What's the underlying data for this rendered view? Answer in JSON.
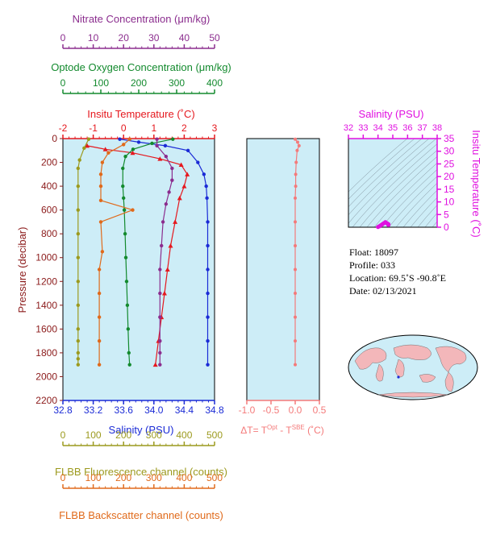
{
  "colors": {
    "nitrate": "#8B2D8E",
    "oxygen": "#138A2E",
    "temperature": "#E5181E",
    "salinity": "#1B2BD6",
    "fluorescence": "#9C9A1E",
    "backscatter": "#E06A1B",
    "delta_t": "#F47A7A",
    "ts_axis": "#E010E0",
    "panel_bg": "#CDEDF7"
  },
  "axes": {
    "nitrate": {
      "label": "Nitrate Concentration (μm/kg)",
      "ticks": [
        "0",
        "10",
        "20",
        "30",
        "40",
        "50"
      ]
    },
    "oxygen": {
      "label": "Optode Oxygen Concentration (μm/kg)",
      "ticks": [
        "0",
        "100",
        "200",
        "300",
        "400"
      ]
    },
    "temperature": {
      "label": "Insitu Temperature (˚C)",
      "ticks": [
        "-2",
        "-1",
        "0",
        "1",
        "2",
        "3"
      ]
    },
    "salinity": {
      "label": "Salinity (PSU)",
      "ticks": [
        "32.8",
        "33.2",
        "33.6",
        "34.0",
        "34.4",
        "34.8"
      ]
    },
    "pressure": {
      "label": "Pressure (decibar)",
      "ticks": [
        "0",
        "200",
        "400",
        "600",
        "800",
        "1000",
        "1200",
        "1400",
        "1600",
        "1800",
        "2000",
        "2200"
      ]
    },
    "fluorescence": {
      "label": "FLBB Fluorescence channel (counts)",
      "ticks": [
        "0",
        "100",
        "200",
        "300",
        "400",
        "500"
      ]
    },
    "backscatter": {
      "label": "FLBB Backscatter channel (counts)",
      "ticks": [
        "0",
        "100",
        "200",
        "300",
        "400",
        "500"
      ]
    },
    "delta_t": {
      "label_prefix": "ΔT= T",
      "sup1": "Opt",
      "mid": " - T",
      "sup2": "SBE",
      "suffix": " (˚C)",
      "ticks": [
        "-1.0",
        "-0.5",
        "0.0",
        "0.5"
      ]
    },
    "ts_salinity": {
      "label": "Salinity (PSU)",
      "ticks": [
        "32",
        "33",
        "34",
        "35",
        "36",
        "37",
        "38"
      ]
    },
    "ts_temperature": {
      "label": "Insitu Temperature (˚C)",
      "ticks": [
        "0",
        "5",
        "10",
        "15",
        "20",
        "25",
        "30",
        "35"
      ]
    }
  },
  "info": {
    "float": "Float:  18097",
    "profile": "Profile:  033",
    "location": "Location:  69.5˚S  -90.8˚E",
    "date": "Date:  02/13/2021"
  },
  "chart_data": [
    {
      "type": "line",
      "title": "",
      "ylabel": "Pressure (decibar)",
      "ylim": [
        2200,
        0
      ],
      "series": [
        {
          "name": "Salinity (PSU)",
          "xlim": [
            32.8,
            34.8
          ],
          "x": [
            33.55,
            33.8,
            34.15,
            34.45,
            34.58,
            34.66,
            34.69,
            34.7,
            34.71,
            34.71,
            34.71,
            34.71,
            34.71,
            34.71,
            34.71
          ],
          "y": [
            5,
            30,
            60,
            100,
            200,
            300,
            400,
            500,
            700,
            900,
            1100,
            1300,
            1500,
            1700,
            1900
          ]
        },
        {
          "name": "Insitu Temperature (˚C)",
          "xlim": [
            -2,
            3
          ],
          "x": [
            -1.2,
            -0.6,
            0.3,
            1.2,
            1.9,
            2.1,
            2.0,
            1.85,
            1.7,
            1.55,
            1.45,
            1.35,
            1.25,
            1.15,
            1.05
          ],
          "y": [
            60,
            90,
            120,
            170,
            220,
            300,
            400,
            500,
            700,
            900,
            1100,
            1300,
            1500,
            1700,
            1900
          ]
        },
        {
          "name": "Optode Oxygen Concentration (μm/kg)",
          "xlim": [
            0,
            400
          ],
          "x": [
            290,
            235,
            185,
            165,
            158,
            158,
            160,
            162,
            164,
            166,
            168,
            170,
            172,
            174,
            176
          ],
          "y": [
            5,
            40,
            90,
            150,
            250,
            400,
            500,
            600,
            800,
            1000,
            1200,
            1400,
            1600,
            1800,
            1900
          ]
        },
        {
          "name": "Nitrate Concentration (μm/kg)",
          "xlim": [
            0,
            50
          ],
          "x": [
            31,
            31,
            34,
            36,
            36,
            35,
            34,
            33,
            32.5,
            32,
            32,
            32,
            32,
            32,
            32
          ],
          "y": [
            5,
            60,
            150,
            250,
            350,
            450,
            550,
            700,
            900,
            1100,
            1300,
            1500,
            1700,
            1800,
            1900
          ]
        },
        {
          "name": "FLBB Fluorescence channel (counts)",
          "xlim": [
            0,
            500
          ],
          "x": [
            85,
            70,
            55,
            50,
            50,
            50,
            50,
            50,
            50,
            50,
            50,
            50,
            50,
            50,
            50
          ],
          "y": [
            5,
            80,
            180,
            250,
            400,
            600,
            800,
            1000,
            1200,
            1400,
            1600,
            1700,
            1800,
            1850,
            1900
          ]
        },
        {
          "name": "FLBB Backscatter channel (counts)",
          "xlim": [
            0,
            500
          ],
          "x": [
            220,
            200,
            150,
            130,
            125,
            125,
            125,
            230,
            125,
            130,
            120,
            120,
            120,
            120,
            120
          ],
          "y": [
            5,
            50,
            120,
            200,
            300,
            400,
            520,
            600,
            700,
            950,
            1100,
            1300,
            1500,
            1700,
            1900
          ]
        }
      ]
    },
    {
      "type": "line",
      "title": "",
      "xlabel": "ΔT= TOpt - TSBE (˚C)",
      "xlim": [
        -1.0,
        0.5
      ],
      "ylim": [
        2200,
        0
      ],
      "series": [
        {
          "name": "",
          "x": [
            0.0,
            0.05,
            0.08,
            0.04,
            0.02,
            0.01,
            0.01,
            0.0,
            0.0,
            0.0,
            0.0,
            0.0,
            0.0,
            0.0,
            0.0
          ],
          "y": [
            5,
            30,
            60,
            100,
            200,
            300,
            400,
            500,
            700,
            900,
            1100,
            1300,
            1500,
            1700,
            1900
          ]
        }
      ]
    },
    {
      "type": "scatter",
      "title": "",
      "xlabel": "Salinity (PSU)",
      "ylabel": "Insitu Temperature (˚C)",
      "xlim": [
        32,
        38
      ],
      "ylim": [
        0,
        35
      ],
      "series": [
        {
          "name": "",
          "x": [
            34.0,
            34.1,
            34.2,
            34.3,
            34.4,
            34.5,
            34.6,
            34.7,
            34.7,
            34.7
          ],
          "y": [
            0.1,
            0.4,
            0.8,
            1.2,
            1.6,
            2.0,
            1.6,
            1.2,
            1.0,
            0.9
          ]
        }
      ]
    }
  ]
}
